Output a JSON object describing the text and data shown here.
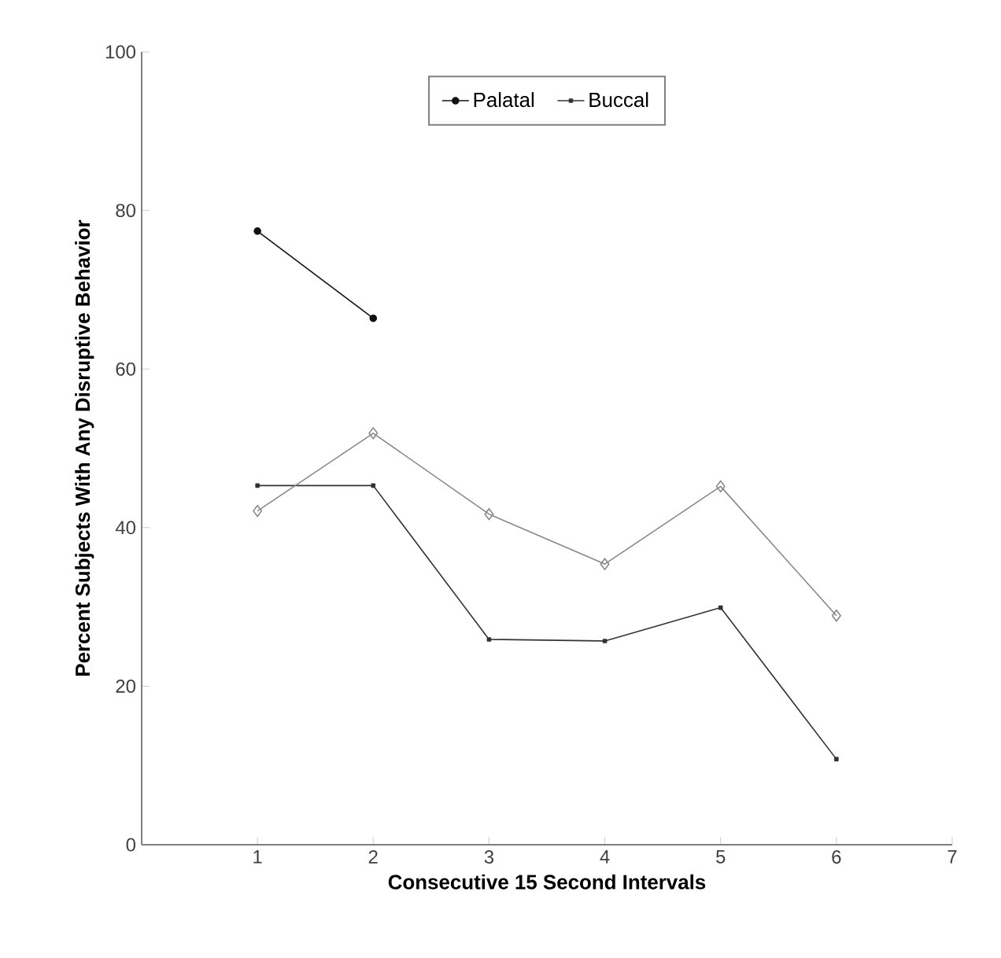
{
  "chart_data": {
    "type": "line",
    "xlabel": "Consecutive 15 Second Intervals",
    "ylabel": "Percent Subjects With Any Disruptive Behavior",
    "x": [
      1,
      2,
      3,
      4,
      5,
      6
    ],
    "xlim": [
      0,
      7
    ],
    "xticks": [
      1,
      2,
      3,
      4,
      5,
      6,
      7
    ],
    "ylim": [
      0,
      100
    ],
    "yticks": [
      0,
      20,
      40,
      60,
      80,
      100
    ],
    "legend": "top",
    "grid": false,
    "line_style": "solid",
    "series": [
      {
        "name": "Palatal",
        "color": "#111111",
        "marker": "circle",
        "values": [
          77.4,
          66.4,
          null,
          null,
          null,
          null
        ]
      },
      {
        "name": "Buccal",
        "color": "#333333",
        "marker": "square",
        "values": [
          45.3,
          45.3,
          25.9,
          25.7,
          29.9,
          10.8
        ]
      },
      {
        "color": "#888888",
        "marker": "diamond",
        "values": [
          42.1,
          51.9,
          41.7,
          35.4,
          45.2,
          28.9
        ]
      }
    ]
  }
}
